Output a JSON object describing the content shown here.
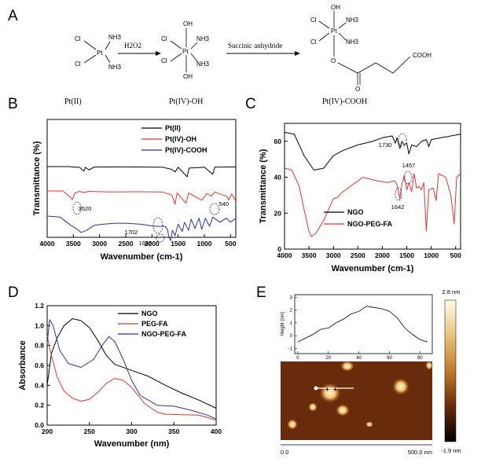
{
  "panels": {
    "a": "A",
    "b": "B",
    "c": "C",
    "d": "D",
    "e": "E"
  },
  "scheme": {
    "reagent1": "H2O2",
    "reagent2": "Succinic anhydride",
    "cl": "Cl",
    "nh3": "NH3",
    "pt": "Pt",
    "oh": "OH",
    "cooh": "COOH",
    "o": "O",
    "label_pt2": "Pt(II)",
    "label_pt4oh": "Pt(IV)-OH",
    "label_pt4cooh": "Pt(IV)-COOH"
  },
  "colors": {
    "black": "#000000",
    "red": "#e8322f",
    "blue": "#2f2fa0"
  },
  "chart_data": [
    {
      "id": "B",
      "type": "line",
      "xlabel": "Wavenumber (cm-1)",
      "ylabel": "Transmittance (%)",
      "xlim": [
        4000,
        400
      ],
      "xticks": [
        "4000",
        "3500",
        "3000",
        "2500",
        "2000",
        "1500",
        "1000",
        "500"
      ],
      "series": [
        {
          "name": "Pt(II)",
          "color": "black",
          "offset": 0.0,
          "points": [
            [
              4000,
              0
            ],
            [
              3600,
              0
            ],
            [
              3380,
              -0.8
            ],
            [
              3300,
              -4.5
            ],
            [
              3270,
              -0.8
            ],
            [
              3200,
              -3.2
            ],
            [
              3100,
              -0.4
            ],
            [
              2500,
              -0.3
            ],
            [
              1800,
              -0.5
            ],
            [
              1620,
              -2.8
            ],
            [
              1560,
              -5.2
            ],
            [
              1500,
              -0.6
            ],
            [
              1330,
              -10
            ],
            [
              1290,
              -1.5
            ],
            [
              1000,
              -0.6
            ],
            [
              840,
              -7.5
            ],
            [
              800,
              -0.5
            ],
            [
              400,
              -0.3
            ]
          ]
        },
        {
          "name": "Pt(IV)-OH",
          "color": "red",
          "offset": -18,
          "points": [
            [
              4000,
              0
            ],
            [
              3700,
              0
            ],
            [
              3560,
              -6
            ],
            [
              3520,
              -8.5
            ],
            [
              3470,
              -2
            ],
            [
              3380,
              -0.4
            ],
            [
              3300,
              -1.5
            ],
            [
              3200,
              -0.4
            ],
            [
              2800,
              -1
            ],
            [
              2300,
              -0.8
            ],
            [
              1800,
              -1
            ],
            [
              1620,
              -4
            ],
            [
              1560,
              -13
            ],
            [
              1520,
              -2
            ],
            [
              1350,
              -12
            ],
            [
              1300,
              -2
            ],
            [
              1050,
              -9
            ],
            [
              950,
              -2.5
            ],
            [
              870,
              -5
            ],
            [
              800,
              -1
            ],
            [
              560,
              -5.5
            ],
            [
              540,
              -9
            ],
            [
              480,
              -3
            ],
            [
              400,
              -10
            ]
          ]
        },
        {
          "name": "Pt(IV)-COOH",
          "color": "blue",
          "offset": -33,
          "points": [
            [
              4000,
              0
            ],
            [
              3750,
              -1
            ],
            [
              3550,
              -9
            ],
            [
              3450,
              -12
            ],
            [
              3350,
              -16
            ],
            [
              3250,
              -14
            ],
            [
              3100,
              -9
            ],
            [
              2950,
              -8
            ],
            [
              2700,
              -7
            ],
            [
              2500,
              -7
            ],
            [
              2200,
              -8
            ],
            [
              1950,
              -10
            ],
            [
              1750,
              -10
            ],
            [
              1702,
              -13
            ],
            [
              1680,
              -20
            ],
            [
              1645,
              -24
            ],
            [
              1610,
              -14
            ],
            [
              1560,
              -19
            ],
            [
              1500,
              -8
            ],
            [
              1420,
              -15
            ],
            [
              1380,
              -6
            ],
            [
              1300,
              -14
            ],
            [
              1250,
              -3
            ],
            [
              1180,
              -12
            ],
            [
              1100,
              -2
            ],
            [
              1050,
              -13
            ],
            [
              980,
              -2
            ],
            [
              900,
              -10
            ],
            [
              840,
              -1
            ],
            [
              700,
              -6
            ],
            [
              580,
              -2
            ],
            [
              500,
              -6
            ],
            [
              400,
              -2
            ]
          ]
        }
      ],
      "annotations": [
        "3520",
        "540",
        "1702",
        "1645"
      ]
    },
    {
      "id": "C",
      "type": "line",
      "xlabel": "Wavenumber (cm-1)",
      "ylabel": "Transmittance (%)",
      "xlim": [
        4000,
        400
      ],
      "ylim": [
        0,
        70
      ],
      "xticks": [
        "4000",
        "3500",
        "3000",
        "2500",
        "2000",
        "1500",
        "1000",
        "500"
      ],
      "yticks": [
        "0",
        "20",
        "40",
        "60"
      ],
      "series": [
        {
          "name": "NGO",
          "color": "black",
          "points": [
            [
              4000,
              65
            ],
            [
              3800,
              64
            ],
            [
              3600,
              52
            ],
            [
              3400,
              44
            ],
            [
              3200,
              45
            ],
            [
              3000,
              52
            ],
            [
              2800,
              55
            ],
            [
              2500,
              58
            ],
            [
              2200,
              60
            ],
            [
              2000,
              62
            ],
            [
              1800,
              63
            ],
            [
              1730,
              59
            ],
            [
              1700,
              62
            ],
            [
              1640,
              56
            ],
            [
              1600,
              60
            ],
            [
              1550,
              58
            ],
            [
              1500,
              59
            ],
            [
              1457,
              53
            ],
            [
              1400,
              58
            ],
            [
              1300,
              57
            ],
            [
              1200,
              60
            ],
            [
              1100,
              61
            ],
            [
              1050,
              57
            ],
            [
              1000,
              61
            ],
            [
              800,
              62
            ],
            [
              600,
              63
            ],
            [
              400,
              64
            ]
          ]
        },
        {
          "name": "NGO-PEG-FA",
          "color": "red",
          "points": [
            [
              4000,
              45
            ],
            [
              3850,
              44
            ],
            [
              3700,
              35
            ],
            [
              3600,
              22
            ],
            [
              3500,
              10
            ],
            [
              3450,
              7
            ],
            [
              3350,
              9
            ],
            [
              3200,
              16
            ],
            [
              3000,
              28
            ],
            [
              2900,
              29
            ],
            [
              2850,
              31
            ],
            [
              2600,
              36
            ],
            [
              2400,
              40
            ],
            [
              2100,
              38
            ],
            [
              1900,
              37
            ],
            [
              1750,
              38
            ],
            [
              1700,
              36
            ],
            [
              1642,
              28
            ],
            [
              1600,
              36
            ],
            [
              1550,
              41
            ],
            [
              1500,
              33
            ],
            [
              1457,
              37
            ],
            [
              1400,
              32
            ],
            [
              1350,
              42
            ],
            [
              1300,
              34
            ],
            [
              1250,
              35
            ],
            [
              1200,
              33
            ],
            [
              1150,
              37
            ],
            [
              1100,
              10
            ],
            [
              1050,
              33
            ],
            [
              960,
              34
            ],
            [
              900,
              27
            ],
            [
              850,
              42
            ],
            [
              700,
              40
            ],
            [
              600,
              30
            ],
            [
              530,
              14
            ],
            [
              480,
              40
            ],
            [
              400,
              42
            ]
          ]
        }
      ],
      "annotations": [
        "1730",
        "1457",
        "1642"
      ]
    },
    {
      "id": "D",
      "type": "line",
      "xlabel": "Wavenumber (nm)",
      "ylabel": "Absorbance",
      "xlim": [
        200,
        400
      ],
      "ylim": [
        0.0,
        1.2
      ],
      "xticks": [
        "200",
        "250",
        "300",
        "350",
        "400"
      ],
      "yticks": [
        "0.0",
        "0.2",
        "0.4",
        "0.6",
        "0.8",
        "1.0",
        "1.2"
      ],
      "series": [
        {
          "name": "NGO",
          "color": "black",
          "points": [
            [
              200,
              0.4
            ],
            [
              205,
              0.72
            ],
            [
              212,
              0.88
            ],
            [
              220,
              1.0
            ],
            [
              230,
              1.07
            ],
            [
              240,
              1.05
            ],
            [
              250,
              0.98
            ],
            [
              260,
              0.85
            ],
            [
              270,
              0.7
            ],
            [
              280,
              0.61
            ],
            [
              300,
              0.55
            ],
            [
              320,
              0.49
            ],
            [
              340,
              0.4
            ],
            [
              360,
              0.32
            ],
            [
              380,
              0.25
            ],
            [
              400,
              0.17
            ]
          ]
        },
        {
          "name": "PEG-FA",
          "color": "red",
          "points": [
            [
              200,
              0.9
            ],
            [
              205,
              0.7
            ],
            [
              212,
              0.48
            ],
            [
              220,
              0.34
            ],
            [
              230,
              0.27
            ],
            [
              240,
              0.24
            ],
            [
              250,
              0.26
            ],
            [
              260,
              0.33
            ],
            [
              270,
              0.42
            ],
            [
              280,
              0.47
            ],
            [
              290,
              0.45
            ],
            [
              300,
              0.38
            ],
            [
              315,
              0.22
            ],
            [
              330,
              0.13
            ],
            [
              340,
              0.11
            ],
            [
              360,
              0.105
            ],
            [
              380,
              0.1
            ],
            [
              400,
              0.05
            ]
          ]
        },
        {
          "name": "NGO-PEG-FA",
          "color": "blue",
          "points": [
            [
              200,
              0.82
            ],
            [
              203,
              1.06
            ],
            [
              207,
              1.0
            ],
            [
              215,
              0.75
            ],
            [
              225,
              0.62
            ],
            [
              240,
              0.58
            ],
            [
              255,
              0.66
            ],
            [
              265,
              0.8
            ],
            [
              273,
              0.89
            ],
            [
              280,
              0.84
            ],
            [
              290,
              0.66
            ],
            [
              300,
              0.45
            ],
            [
              310,
              0.3
            ],
            [
              320,
              0.25
            ],
            [
              330,
              0.2
            ],
            [
              350,
              0.19
            ],
            [
              370,
              0.15
            ],
            [
              390,
              0.1
            ],
            [
              400,
              0.06
            ]
          ]
        }
      ]
    }
  ],
  "afm": {
    "height_title": "Height (nm)",
    "height_yticks": [
      "3",
      "2",
      "1",
      "0",
      "-1"
    ],
    "height_xticks": [
      "0",
      "20",
      "40",
      "60",
      "80"
    ],
    "profile": [
      [
        0,
        -0.5
      ],
      [
        5,
        -0.2
      ],
      [
        10,
        0.1
      ],
      [
        15,
        0.5
      ],
      [
        20,
        0.6
      ],
      [
        25,
        1.0
      ],
      [
        30,
        1.3
      ],
      [
        35,
        1.7
      ],
      [
        40,
        1.9
      ],
      [
        45,
        2.3
      ],
      [
        50,
        2.2
      ],
      [
        55,
        2.1
      ],
      [
        60,
        1.9
      ],
      [
        65,
        1.4
      ],
      [
        70,
        0.6
      ],
      [
        75,
        0.1
      ],
      [
        80,
        -0.3
      ],
      [
        85,
        -0.5
      ]
    ],
    "scale_left": "0.0",
    "scale_right": "500.0 nm",
    "color_max": "2.8 nm",
    "color_min": "-1.9 nm"
  }
}
